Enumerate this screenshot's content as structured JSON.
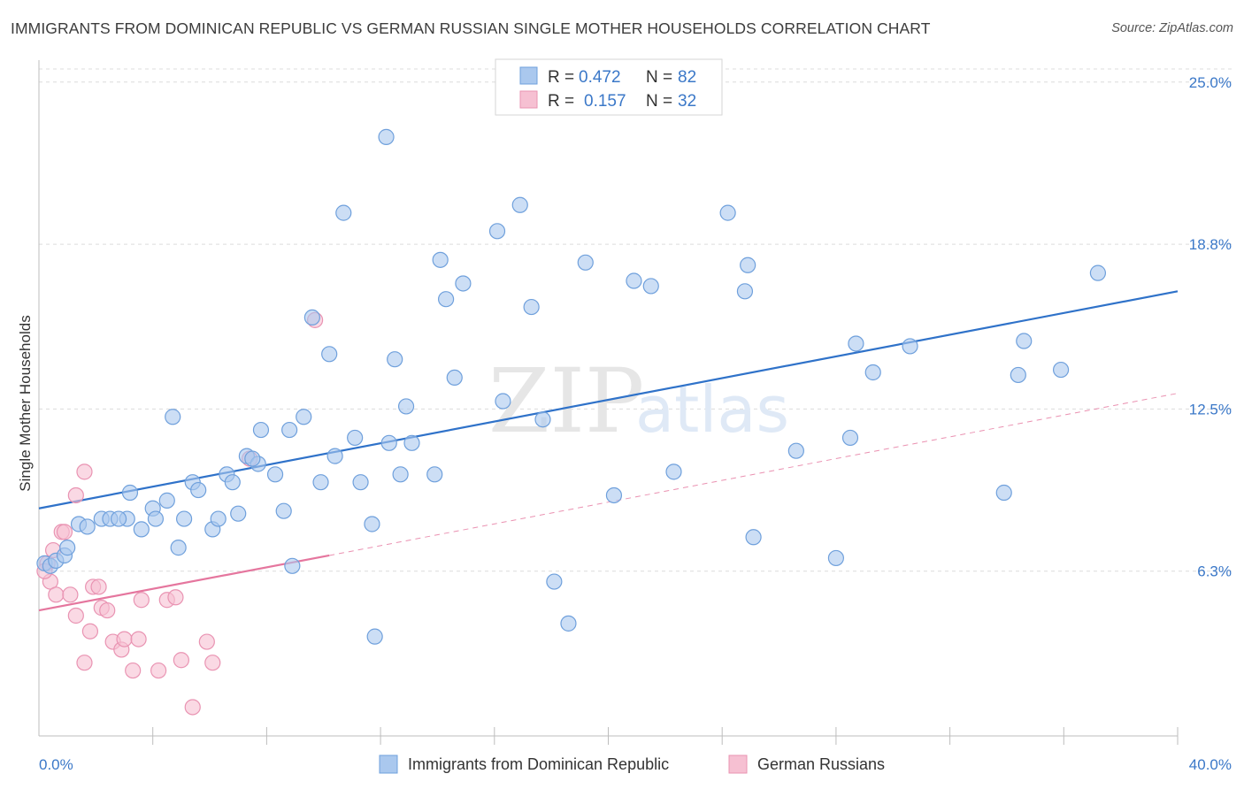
{
  "header": {
    "title": "IMMIGRANTS FROM DOMINICAN REPUBLIC VS GERMAN RUSSIAN SINGLE MOTHER HOUSEHOLDS CORRELATION CHART",
    "source": "Source: ZipAtlas.com"
  },
  "watermark": {
    "zip": "ZIP",
    "atlas": "atlas"
  },
  "legend": {
    "rows": [
      {
        "r_label": "R =",
        "r_value": "0.472",
        "n_label": "N =",
        "n_value": "82"
      },
      {
        "r_label": "R =",
        "r_value": "0.157",
        "n_label": "N =",
        "n_value": "32"
      }
    ]
  },
  "bottom_legend": {
    "items": [
      "Immigrants from Dominican Republic",
      "German Russians"
    ]
  },
  "colors": {
    "blue_fill": "#aac8ee",
    "blue_stroke": "#6fa0dc",
    "blue_line": "#2f72c9",
    "pink_fill": "#f6c0d2",
    "pink_stroke": "#e993b2",
    "pink_line": "#e5769e",
    "grid": "#dcdcdc",
    "tick_text": "#3b78c8"
  },
  "chart_data": {
    "type": "scatter",
    "title": "IMMIGRANTS FROM DOMINICAN REPUBLIC VS GERMAN RUSSIAN SINGLE MOTHER HOUSEHOLDS CORRELATION CHART",
    "xlabel": "",
    "ylabel": "Single Mother Households",
    "xlim": [
      0,
      40
    ],
    "ylim": [
      0,
      25.5
    ],
    "x_tick_labels": [
      "0.0%",
      "40.0%"
    ],
    "y_ticks": [
      6.3,
      12.5,
      18.8,
      25.0
    ],
    "y_tick_labels": [
      "6.3%",
      "12.5%",
      "18.8%",
      "25.0%"
    ],
    "grid": true,
    "legend_position": "top-center",
    "series": [
      {
        "name": "Immigrants from Dominican Republic",
        "R": 0.472,
        "N": 82,
        "trend": {
          "x": [
            0,
            40
          ],
          "y": [
            8.7,
            17.0
          ],
          "style": "solid"
        },
        "points": [
          [
            0.2,
            6.6
          ],
          [
            0.4,
            6.5
          ],
          [
            0.6,
            6.7
          ],
          [
            0.9,
            6.9
          ],
          [
            1.0,
            7.2
          ],
          [
            1.4,
            8.1
          ],
          [
            1.7,
            8.0
          ],
          [
            2.2,
            8.3
          ],
          [
            2.5,
            8.3
          ],
          [
            3.1,
            8.3
          ],
          [
            3.6,
            7.9
          ],
          [
            3.2,
            9.3
          ],
          [
            4.0,
            8.7
          ],
          [
            4.5,
            9.0
          ],
          [
            4.1,
            8.3
          ],
          [
            5.1,
            8.3
          ],
          [
            4.9,
            7.2
          ],
          [
            5.4,
            9.7
          ],
          [
            5.6,
            9.4
          ],
          [
            6.1,
            7.9
          ],
          [
            6.3,
            8.3
          ],
          [
            6.6,
            10.0
          ],
          [
            6.8,
            9.7
          ],
          [
            7.0,
            8.5
          ],
          [
            4.7,
            12.2
          ],
          [
            7.3,
            10.7
          ],
          [
            7.7,
            10.4
          ],
          [
            7.8,
            11.7
          ],
          [
            8.3,
            10.0
          ],
          [
            8.6,
            8.6
          ],
          [
            8.9,
            6.5
          ],
          [
            8.8,
            11.7
          ],
          [
            9.3,
            12.2
          ],
          [
            9.6,
            16.0
          ],
          [
            9.9,
            9.7
          ],
          [
            10.2,
            14.6
          ],
          [
            10.4,
            10.7
          ],
          [
            10.7,
            20.0
          ],
          [
            11.1,
            11.4
          ],
          [
            11.3,
            9.7
          ],
          [
            11.7,
            8.1
          ],
          [
            11.8,
            3.8
          ],
          [
            12.3,
            11.2
          ],
          [
            12.5,
            14.4
          ],
          [
            12.7,
            10.0
          ],
          [
            12.9,
            12.6
          ],
          [
            13.1,
            11.2
          ],
          [
            13.9,
            10.0
          ],
          [
            14.1,
            18.2
          ],
          [
            14.3,
            16.7
          ],
          [
            14.6,
            13.7
          ],
          [
            14.9,
            17.3
          ],
          [
            16.1,
            19.3
          ],
          [
            16.3,
            12.8
          ],
          [
            16.9,
            20.3
          ],
          [
            17.3,
            16.4
          ],
          [
            17.7,
            12.1
          ],
          [
            18.1,
            5.9
          ],
          [
            18.6,
            4.3
          ],
          [
            19.2,
            18.1
          ],
          [
            20.2,
            9.2
          ],
          [
            20.9,
            17.4
          ],
          [
            21.5,
            17.2
          ],
          [
            22.3,
            10.1
          ],
          [
            24.2,
            20.0
          ],
          [
            24.8,
            17.0
          ],
          [
            24.9,
            18.0
          ],
          [
            25.1,
            7.6
          ],
          [
            26.6,
            10.9
          ],
          [
            28.0,
            6.8
          ],
          [
            28.5,
            11.4
          ],
          [
            28.7,
            15.0
          ],
          [
            29.3,
            13.9
          ],
          [
            30.6,
            14.9
          ],
          [
            33.9,
            9.3
          ],
          [
            34.4,
            13.8
          ],
          [
            34.6,
            15.1
          ],
          [
            35.9,
            14.0
          ],
          [
            37.2,
            17.7
          ],
          [
            12.2,
            22.9
          ],
          [
            7.5,
            10.6
          ],
          [
            2.8,
            8.3
          ]
        ]
      },
      {
        "name": "German Russians",
        "R": 0.157,
        "N": 32,
        "trend_solid": {
          "x": [
            0,
            10.2
          ],
          "y": [
            4.8,
            6.9
          ]
        },
        "trend_dashed": {
          "x": [
            10.2,
            40
          ],
          "y": [
            6.9,
            13.1
          ]
        },
        "points": [
          [
            0.3,
            6.6
          ],
          [
            0.4,
            5.9
          ],
          [
            0.5,
            7.1
          ],
          [
            0.6,
            5.4
          ],
          [
            0.8,
            7.8
          ],
          [
            0.9,
            7.8
          ],
          [
            1.1,
            5.4
          ],
          [
            1.3,
            4.6
          ],
          [
            1.3,
            9.2
          ],
          [
            1.6,
            2.8
          ],
          [
            1.6,
            10.1
          ],
          [
            1.8,
            4.0
          ],
          [
            1.9,
            5.7
          ],
          [
            2.1,
            5.7
          ],
          [
            2.2,
            4.9
          ],
          [
            2.4,
            4.8
          ],
          [
            2.6,
            3.6
          ],
          [
            2.9,
            3.3
          ],
          [
            3.0,
            3.7
          ],
          [
            3.3,
            2.5
          ],
          [
            3.5,
            3.7
          ],
          [
            3.6,
            5.2
          ],
          [
            4.2,
            2.5
          ],
          [
            4.5,
            5.2
          ],
          [
            4.8,
            5.3
          ],
          [
            5.0,
            2.9
          ],
          [
            5.4,
            1.1
          ],
          [
            5.9,
            3.6
          ],
          [
            6.1,
            2.8
          ],
          [
            7.4,
            10.6
          ],
          [
            9.7,
            15.9
          ],
          [
            0.2,
            6.3
          ]
        ]
      }
    ]
  }
}
